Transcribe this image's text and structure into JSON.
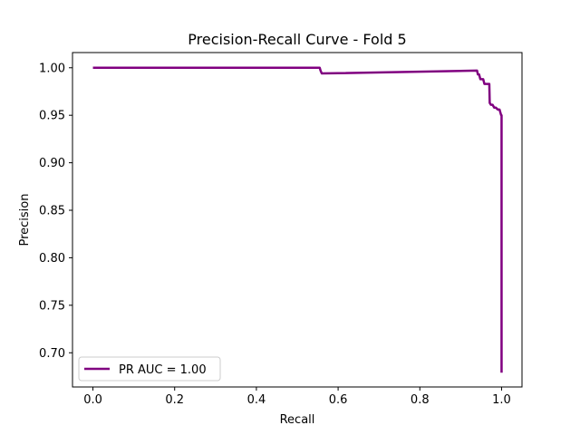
{
  "chart_data": {
    "type": "line",
    "title": "Precision-Recall Curve - Fold 5",
    "xlabel": "Recall",
    "ylabel": "Precision",
    "xlim": [
      -0.05,
      1.05
    ],
    "ylim": [
      0.664,
      1.016
    ],
    "xticks": [
      0.0,
      0.2,
      0.4,
      0.6,
      0.8,
      1.0
    ],
    "xtick_labels": [
      "0.0",
      "0.2",
      "0.4",
      "0.6",
      "0.8",
      "1.0"
    ],
    "yticks": [
      0.7,
      0.75,
      0.8,
      0.85,
      0.9,
      0.95,
      1.0
    ],
    "ytick_labels": [
      "0.70",
      "0.75",
      "0.80",
      "0.85",
      "0.90",
      "0.95",
      "1.00"
    ],
    "grid": false,
    "legend_position": "lower-left",
    "series": [
      {
        "name": "PR AUC = 1.00",
        "color": "#800080",
        "x": [
          0.0,
          0.555,
          0.557,
          0.56,
          0.94,
          0.942,
          0.945,
          0.948,
          0.955,
          0.958,
          0.962,
          0.964,
          0.97,
          0.971,
          0.974,
          0.978,
          0.982,
          0.986,
          0.991,
          0.995,
          0.999,
          1.0,
          1.0
        ],
        "y": [
          1.0,
          1.0,
          0.997,
          0.994,
          0.997,
          0.993,
          0.993,
          0.988,
          0.988,
          0.983,
          0.983,
          0.983,
          0.983,
          0.963,
          0.961,
          0.961,
          0.958,
          0.958,
          0.956,
          0.956,
          0.95,
          0.95,
          0.679
        ]
      }
    ]
  }
}
